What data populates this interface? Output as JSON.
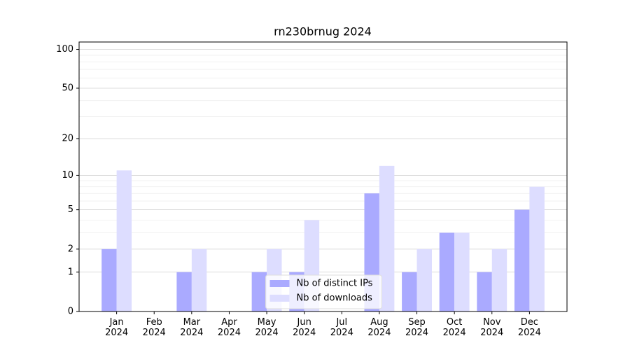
{
  "chart_data": {
    "type": "bar",
    "title": "rn230brnug 2024",
    "categories": [
      "Jan\n2024",
      "Feb\n2024",
      "Mar\n2024",
      "Apr\n2024",
      "May\n2024",
      "Jun\n2024",
      "Jul\n2024",
      "Aug\n2024",
      "Sep\n2024",
      "Oct\n2024",
      "Nov\n2024",
      "Dec\n2024"
    ],
    "series": [
      {
        "name": "Nb of distinct IPs",
        "color": "#aaaaff",
        "values": [
          2,
          0,
          1,
          0,
          1,
          1,
          0,
          7,
          1,
          3,
          1,
          5
        ]
      },
      {
        "name": "Nb of downloads",
        "color": "#ddddff",
        "values": [
          11,
          0,
          2,
          0,
          2,
          4,
          0,
          12,
          2,
          3,
          2,
          8
        ]
      }
    ],
    "yscale": "log1p",
    "ylim": [
      0,
      114
    ],
    "yticks": [
      0,
      1,
      2,
      5,
      10,
      20,
      50,
      100
    ],
    "minor_yticks": [
      3,
      4,
      6,
      7,
      8,
      9,
      30,
      40,
      60,
      70,
      80,
      90
    ],
    "grid": true,
    "legend": "lower center"
  }
}
